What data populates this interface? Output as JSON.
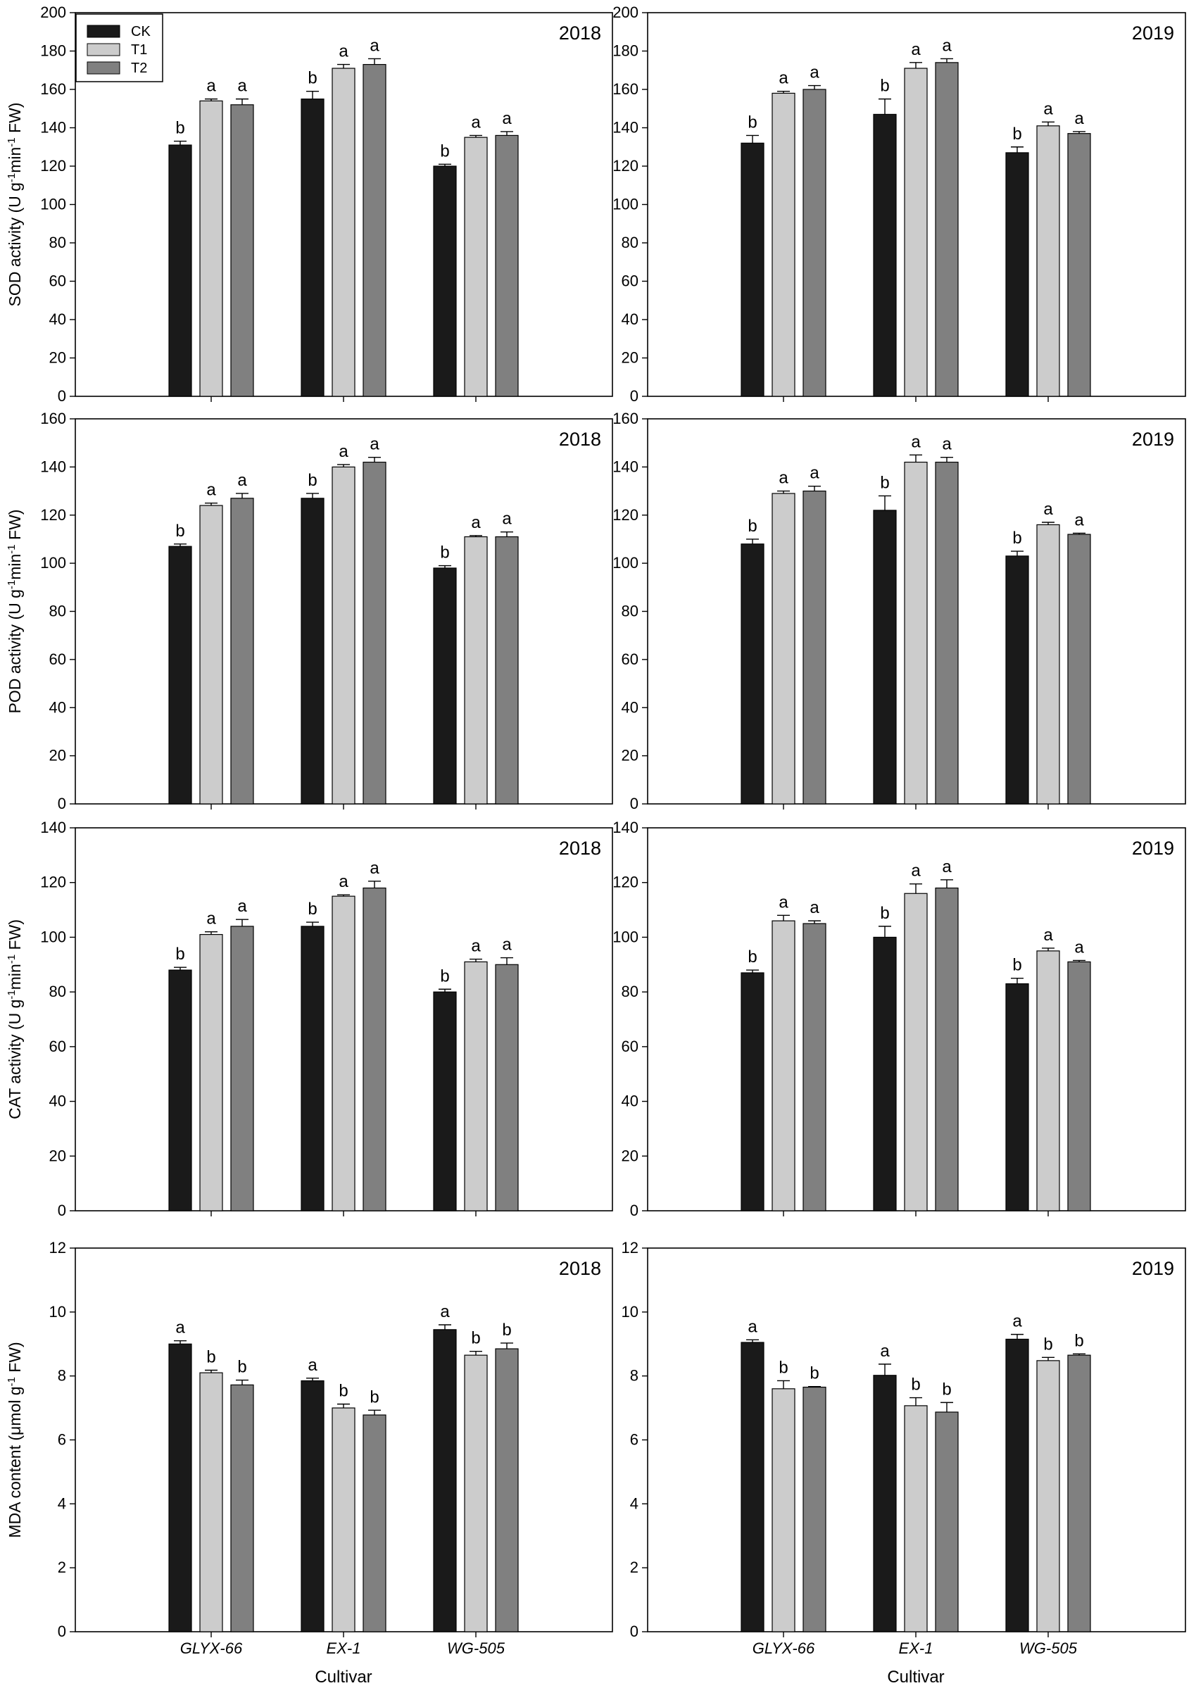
{
  "figure": {
    "legend": {
      "entries": [
        {
          "label": "CK",
          "color": "#1a1a1a"
        },
        {
          "label": "T1",
          "color": "#cccccc"
        },
        {
          "label": "T2",
          "color": "#808080"
        }
      ]
    },
    "xlabel": "Cultivar",
    "cultivars": [
      "GLYX-66",
      "EX-1",
      "WG-505"
    ]
  },
  "chart_data": [
    {
      "type": "bar",
      "title": "2018",
      "ylabel": "SOD activity (U g-1 min-1 FW)",
      "ylabel_parts": {
        "pre": "SOD activity (U g",
        "s1": "-1",
        "mid": "min",
        "s2": "-1",
        "post": " FW)"
      },
      "categories": [
        "GLYX-66",
        "EX-1",
        "WG-505"
      ],
      "ylim": [
        0,
        200
      ],
      "ticks": [
        0,
        20,
        40,
        60,
        80,
        100,
        120,
        140,
        160,
        180,
        200
      ],
      "series": [
        {
          "name": "CK",
          "values": [
            131,
            155,
            120
          ],
          "errors": [
            2,
            4,
            1
          ],
          "letters": [
            "b",
            "b",
            "b"
          ]
        },
        {
          "name": "T1",
          "values": [
            154,
            171,
            135
          ],
          "errors": [
            1,
            2,
            1
          ],
          "letters": [
            "a",
            "a",
            "a"
          ]
        },
        {
          "name": "T2",
          "values": [
            152,
            173,
            136
          ],
          "errors": [
            3,
            3,
            2
          ],
          "letters": [
            "a",
            "a",
            "a"
          ]
        }
      ]
    },
    {
      "type": "bar",
      "title": "2019",
      "ylabel": "",
      "categories": [
        "GLYX-66",
        "EX-1",
        "WG-505"
      ],
      "ylim": [
        0,
        200
      ],
      "ticks": [
        0,
        20,
        40,
        60,
        80,
        100,
        120,
        140,
        160,
        180,
        200
      ],
      "series": [
        {
          "name": "CK",
          "values": [
            132,
            147,
            127
          ],
          "errors": [
            4,
            8,
            3
          ],
          "letters": [
            "b",
            "b",
            "b"
          ]
        },
        {
          "name": "T1",
          "values": [
            158,
            171,
            141
          ],
          "errors": [
            1,
            3,
            2
          ],
          "letters": [
            "a",
            "a",
            "a"
          ]
        },
        {
          "name": "T2",
          "values": [
            160,
            174,
            137
          ],
          "errors": [
            2,
            2,
            1
          ],
          "letters": [
            "a",
            "a",
            "a"
          ]
        }
      ]
    },
    {
      "type": "bar",
      "title": "2018",
      "ylabel": "POD activity (U g-1 min-1 FW)",
      "ylabel_parts": {
        "pre": "POD activity (U g",
        "s1": "-1",
        "mid": "min",
        "s2": "-1",
        "post": " FW)"
      },
      "categories": [
        "GLYX-66",
        "EX-1",
        "WG-505"
      ],
      "ylim": [
        0,
        160
      ],
      "ticks": [
        0,
        20,
        40,
        60,
        80,
        100,
        120,
        140,
        160
      ],
      "series": [
        {
          "name": "CK",
          "values": [
            107,
            127,
            98
          ],
          "errors": [
            1,
            2,
            1
          ],
          "letters": [
            "b",
            "b",
            "b"
          ]
        },
        {
          "name": "T1",
          "values": [
            124,
            140,
            111
          ],
          "errors": [
            1,
            1,
            0.5
          ],
          "letters": [
            "a",
            "a",
            "a"
          ]
        },
        {
          "name": "T2",
          "values": [
            127,
            142,
            111
          ],
          "errors": [
            2,
            2,
            2
          ],
          "letters": [
            "a",
            "a",
            "a"
          ]
        }
      ]
    },
    {
      "type": "bar",
      "title": "2019",
      "ylabel": "",
      "categories": [
        "GLYX-66",
        "EX-1",
        "WG-505"
      ],
      "ylim": [
        0,
        160
      ],
      "ticks": [
        0,
        20,
        40,
        60,
        80,
        100,
        120,
        140,
        160
      ],
      "series": [
        {
          "name": "CK",
          "values": [
            108,
            122,
            103
          ],
          "errors": [
            2,
            6,
            2
          ],
          "letters": [
            "b",
            "b",
            "b"
          ]
        },
        {
          "name": "T1",
          "values": [
            129,
            142,
            116
          ],
          "errors": [
            1,
            3,
            1
          ],
          "letters": [
            "a",
            "a",
            "a"
          ]
        },
        {
          "name": "T2",
          "values": [
            130,
            142,
            112
          ],
          "errors": [
            2,
            2,
            0.5
          ],
          "letters": [
            "a",
            "a",
            "a"
          ]
        }
      ]
    },
    {
      "type": "bar",
      "title": "2018",
      "ylabel": "CAT activity (U g-1 min-1 FW)",
      "ylabel_parts": {
        "pre": "CAT activity (U g",
        "s1": "-1",
        "mid": "min",
        "s2": "-1",
        "post": " FW)"
      },
      "categories": [
        "GLYX-66",
        "EX-1",
        "WG-505"
      ],
      "ylim": [
        0,
        140
      ],
      "ticks": [
        0,
        20,
        40,
        60,
        80,
        100,
        120,
        140
      ],
      "series": [
        {
          "name": "CK",
          "values": [
            88,
            104,
            80
          ],
          "errors": [
            1,
            1.5,
            1
          ],
          "letters": [
            "b",
            "b",
            "b"
          ]
        },
        {
          "name": "T1",
          "values": [
            101,
            115,
            91
          ],
          "errors": [
            1,
            0.5,
            1
          ],
          "letters": [
            "a",
            "a",
            "a"
          ]
        },
        {
          "name": "T2",
          "values": [
            104,
            118,
            90
          ],
          "errors": [
            2.5,
            2.5,
            2.5
          ],
          "letters": [
            "a",
            "a",
            "a"
          ]
        }
      ]
    },
    {
      "type": "bar",
      "title": "2019",
      "ylabel": "",
      "categories": [
        "GLYX-66",
        "EX-1",
        "WG-505"
      ],
      "ylim": [
        0,
        140
      ],
      "ticks": [
        0,
        20,
        40,
        60,
        80,
        100,
        120,
        140
      ],
      "series": [
        {
          "name": "CK",
          "values": [
            87,
            100,
            83
          ],
          "errors": [
            1,
            4,
            2
          ],
          "letters": [
            "b",
            "b",
            "b"
          ]
        },
        {
          "name": "T1",
          "values": [
            106,
            116,
            95
          ],
          "errors": [
            2,
            3.5,
            1
          ],
          "letters": [
            "a",
            "a",
            "a"
          ]
        },
        {
          "name": "T2",
          "values": [
            105,
            118,
            91
          ],
          "errors": [
            1,
            3,
            0.5
          ],
          "letters": [
            "a",
            "a",
            "a"
          ]
        }
      ]
    },
    {
      "type": "bar",
      "title": "2018",
      "ylabel": "MDA content (μmol g-1 FW)",
      "ylabel_parts": {
        "pre": "MDA content (μmol g",
        "s1": "-1",
        "mid": "",
        "s2": "",
        "post": " FW)"
      },
      "categories": [
        "GLYX-66",
        "EX-1",
        "WG-505"
      ],
      "ylim": [
        0,
        12
      ],
      "ticks": [
        0,
        2,
        4,
        6,
        8,
        10,
        12
      ],
      "series": [
        {
          "name": "CK",
          "values": [
            9.0,
            7.85,
            9.45
          ],
          "errors": [
            0.1,
            0.08,
            0.15
          ],
          "letters": [
            "a",
            "a",
            "a"
          ]
        },
        {
          "name": "T1",
          "values": [
            8.1,
            7.0,
            8.65
          ],
          "errors": [
            0.08,
            0.12,
            0.12
          ],
          "letters": [
            "b",
            "b",
            "b"
          ]
        },
        {
          "name": "T2",
          "values": [
            7.72,
            6.78,
            8.85
          ],
          "errors": [
            0.15,
            0.15,
            0.18
          ],
          "letters": [
            "b",
            "b",
            "b"
          ]
        }
      ]
    },
    {
      "type": "bar",
      "title": "2019",
      "ylabel": "",
      "categories": [
        "GLYX-66",
        "EX-1",
        "WG-505"
      ],
      "ylim": [
        0,
        12
      ],
      "ticks": [
        0,
        2,
        4,
        6,
        8,
        10,
        12
      ],
      "series": [
        {
          "name": "CK",
          "values": [
            9.05,
            8.02,
            9.15
          ],
          "errors": [
            0.08,
            0.35,
            0.15
          ],
          "letters": [
            "a",
            "a",
            "a"
          ]
        },
        {
          "name": "T1",
          "values": [
            7.6,
            7.07,
            8.48
          ],
          "errors": [
            0.25,
            0.25,
            0.1
          ],
          "letters": [
            "b",
            "b",
            "b"
          ]
        },
        {
          "name": "T2",
          "values": [
            7.65,
            6.87,
            8.65
          ],
          "errors": [
            0.02,
            0.3,
            0.04
          ],
          "letters": [
            "b",
            "b",
            "b"
          ]
        }
      ]
    }
  ]
}
